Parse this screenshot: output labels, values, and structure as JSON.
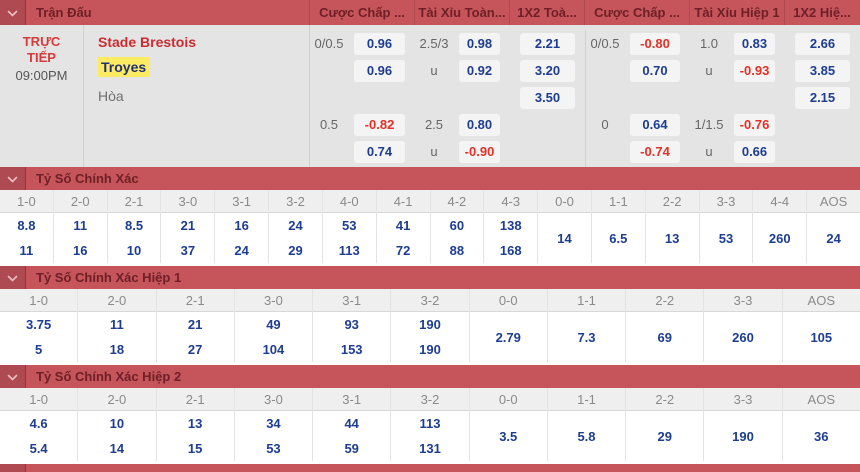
{
  "header": {
    "match_col": "Trận Đấu",
    "odds_cols": [
      "Cược Chấp ...",
      "Tài Xỉu Toàn...",
      "1X2 Toà...",
      "Cược Chấp ...",
      "Tài Xỉu Hiệp 1",
      "1X2 Hiệ..."
    ]
  },
  "match": {
    "status": "TRỰC TIẾP",
    "time": "09:00PM",
    "home_team": "Stade Brestois",
    "away_team": "Troyes",
    "draw_label": "Hòa"
  },
  "odds_groups": [
    {
      "name": "handicap-ft",
      "type": "label-odds",
      "rows": [
        {
          "label": "0/0.5",
          "value": "0.96"
        },
        {
          "label": "",
          "value": "0.96"
        },
        {
          "label": "",
          "value": ""
        },
        {
          "label": "0.5",
          "value": "-0.82"
        },
        {
          "label": "",
          "value": "0.74"
        }
      ]
    },
    {
      "name": "overunder-ft",
      "type": "label-odds",
      "rows": [
        {
          "label": "2.5/3",
          "value": "0.98"
        },
        {
          "label": "u",
          "value": "0.92"
        },
        {
          "label": "",
          "value": ""
        },
        {
          "label": "2.5",
          "value": "0.80"
        },
        {
          "label": "u",
          "value": "-0.90"
        }
      ]
    },
    {
      "name": "1x2-ft",
      "type": "odds-only",
      "rows": [
        {
          "value": "2.21"
        },
        {
          "value": "3.20"
        },
        {
          "value": "3.50"
        },
        {
          "value": ""
        },
        {
          "value": ""
        }
      ]
    },
    {
      "name": "handicap-h1",
      "type": "label-odds",
      "rows": [
        {
          "label": "0/0.5",
          "value": "-0.80"
        },
        {
          "label": "",
          "value": "0.70"
        },
        {
          "label": "",
          "value": ""
        },
        {
          "label": "0",
          "value": "0.64"
        },
        {
          "label": "",
          "value": "-0.74"
        }
      ]
    },
    {
      "name": "overunder-h1",
      "type": "label-odds",
      "rows": [
        {
          "label": "1.0",
          "value": "0.83"
        },
        {
          "label": "u",
          "value": "-0.93"
        },
        {
          "label": "",
          "value": ""
        },
        {
          "label": "1/1.5",
          "value": "-0.76"
        },
        {
          "label": "u",
          "value": "0.66"
        }
      ]
    },
    {
      "name": "1x2-h1",
      "type": "odds-only",
      "rows": [
        {
          "value": "2.66"
        },
        {
          "value": "3.85"
        },
        {
          "value": "2.15"
        },
        {
          "value": ""
        },
        {
          "value": ""
        }
      ]
    }
  ],
  "score_sections": [
    {
      "title": "Tỷ Số Chính Xác",
      "columns": [
        {
          "score": "1-0",
          "values": [
            "8.8",
            "11"
          ]
        },
        {
          "score": "2-0",
          "values": [
            "11",
            "16"
          ]
        },
        {
          "score": "2-1",
          "values": [
            "8.5",
            "10"
          ]
        },
        {
          "score": "3-0",
          "values": [
            "21",
            "37"
          ]
        },
        {
          "score": "3-1",
          "values": [
            "16",
            "24"
          ]
        },
        {
          "score": "3-2",
          "values": [
            "24",
            "29"
          ]
        },
        {
          "score": "4-0",
          "values": [
            "53",
            "113"
          ]
        },
        {
          "score": "4-1",
          "values": [
            "41",
            "72"
          ]
        },
        {
          "score": "4-2",
          "values": [
            "60",
            "88"
          ]
        },
        {
          "score": "4-3",
          "values": [
            "138",
            "168"
          ]
        },
        {
          "score": "0-0",
          "values": [
            "14"
          ]
        },
        {
          "score": "1-1",
          "values": [
            "6.5"
          ]
        },
        {
          "score": "2-2",
          "values": [
            "13"
          ]
        },
        {
          "score": "3-3",
          "values": [
            "53"
          ]
        },
        {
          "score": "4-4",
          "values": [
            "260"
          ]
        },
        {
          "score": "AOS",
          "values": [
            "24"
          ]
        }
      ]
    },
    {
      "title": "Tỷ Số Chính Xác Hiệp 1",
      "columns": [
        {
          "score": "1-0",
          "values": [
            "3.75",
            "5"
          ]
        },
        {
          "score": "2-0",
          "values": [
            "11",
            "18"
          ]
        },
        {
          "score": "2-1",
          "values": [
            "21",
            "27"
          ]
        },
        {
          "score": "3-0",
          "values": [
            "49",
            "104"
          ]
        },
        {
          "score": "3-1",
          "values": [
            "93",
            "153"
          ]
        },
        {
          "score": "3-2",
          "values": [
            "190",
            "190"
          ]
        },
        {
          "score": "0-0",
          "values": [
            "2.79"
          ]
        },
        {
          "score": "1-1",
          "values": [
            "7.3"
          ]
        },
        {
          "score": "2-2",
          "values": [
            "69"
          ]
        },
        {
          "score": "3-3",
          "values": [
            "260"
          ]
        },
        {
          "score": "AOS",
          "values": [
            "105"
          ]
        }
      ]
    },
    {
      "title": "Tỷ Số Chính Xác Hiệp 2",
      "columns": [
        {
          "score": "1-0",
          "values": [
            "4.6",
            "5.4"
          ]
        },
        {
          "score": "2-0",
          "values": [
            "10",
            "14"
          ]
        },
        {
          "score": "2-1",
          "values": [
            "13",
            "15"
          ]
        },
        {
          "score": "3-0",
          "values": [
            "34",
            "53"
          ]
        },
        {
          "score": "3-1",
          "values": [
            "44",
            "59"
          ]
        },
        {
          "score": "3-2",
          "values": [
            "113",
            "131"
          ]
        },
        {
          "score": "0-0",
          "values": [
            "3.5"
          ]
        },
        {
          "score": "1-1",
          "values": [
            "5.8"
          ]
        },
        {
          "score": "2-2",
          "values": [
            "29"
          ]
        },
        {
          "score": "3-3",
          "values": [
            "190"
          ]
        },
        {
          "score": "AOS",
          "values": [
            "36"
          ]
        }
      ]
    }
  ],
  "colors": {
    "accent_bar": "#c5545b",
    "bar_text": "#6f2027",
    "odds_positive": "#1d3d91",
    "odds_negative": "#e23128",
    "team_home": "#cb2c30",
    "team_away": "#20307d",
    "highlight_yellow": "#fdec61",
    "live_badge": "#d63a3a"
  }
}
